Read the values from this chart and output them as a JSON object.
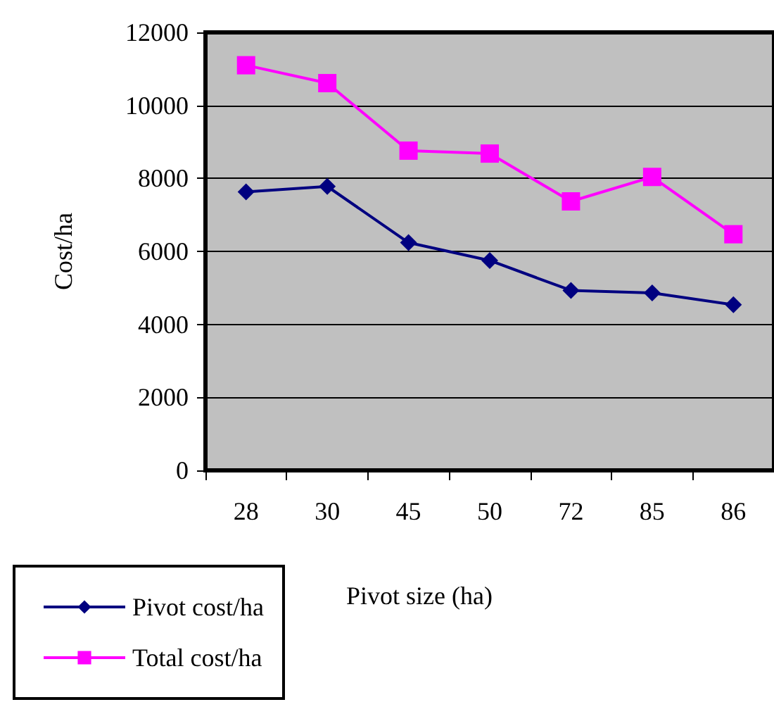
{
  "chart_data": {
    "type": "line",
    "xlabel": "Pivot size (ha)",
    "ylabel": "Cost/ha",
    "categories": [
      "28",
      "30",
      "45",
      "50",
      "72",
      "85",
      "86"
    ],
    "series": [
      {
        "name": "Pivot cost/ha",
        "color": "#000080",
        "marker": "diamond",
        "values": [
          7630,
          7780,
          6240,
          5750,
          4930,
          4860,
          4540
        ]
      },
      {
        "name": "Total cost/ha",
        "color": "#ff00ff",
        "marker": "square",
        "values": [
          11100,
          10610,
          8760,
          8680,
          7370,
          8040,
          6470
        ]
      }
    ],
    "ylim": [
      0,
      12000
    ],
    "yticks": [
      0,
      2000,
      4000,
      6000,
      8000,
      10000,
      12000
    ],
    "grid": "y",
    "legend": "bottom left"
  }
}
